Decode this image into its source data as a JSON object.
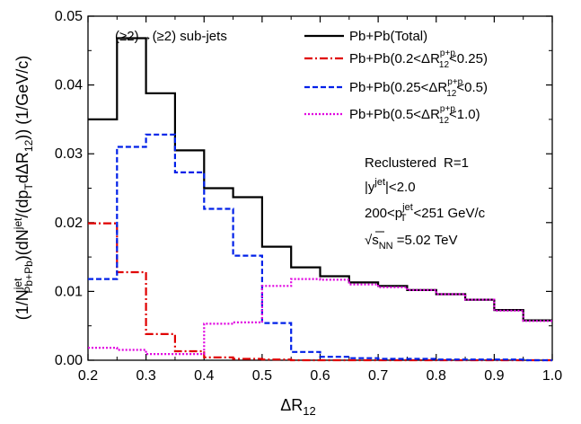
{
  "chart_data": {
    "type": "step",
    "xlabel": "ΔR12",
    "ylabel": "(1/Njet Pb+Pb)(dNjet/(dpT dΔR12)) (1/GeV/c)",
    "xlim": [
      0.2,
      1.0
    ],
    "ylim": [
      0.0,
      0.05
    ],
    "xticks": [
      "0.2",
      "0.3",
      "0.4",
      "0.5",
      "0.6",
      "0.7",
      "0.8",
      "0.9",
      "1.0"
    ],
    "yticks": [
      "0.00",
      "0.01",
      "0.02",
      "0.03",
      "0.04",
      "0.05"
    ],
    "legend_title": "(≥2)→(≥2) sub-jets",
    "bin_edges": [
      0.2,
      0.25,
      0.3,
      0.35,
      0.4,
      0.45,
      0.5,
      0.55,
      0.6,
      0.65,
      0.7,
      0.75,
      0.8,
      0.85,
      0.9,
      0.95,
      1.0
    ],
    "series": [
      {
        "name": "Pb+Pb(Total)",
        "color": "#000000",
        "style": "solid",
        "values": [
          0.035,
          0.0468,
          0.0388,
          0.0305,
          0.025,
          0.0237,
          0.0165,
          0.0135,
          0.0122,
          0.0113,
          0.0108,
          0.0102,
          0.0096,
          0.0088,
          0.0073,
          0.0058
        ]
      },
      {
        "name": "Pb+Pb(0.2<ΔR p+p 12<0.25)",
        "color": "#e00000",
        "style": "dashdot",
        "values": [
          0.0199,
          0.0128,
          0.0038,
          0.0013,
          0.0004,
          0.0002,
          0.0001,
          0.0,
          0.0,
          0.0,
          0.0,
          0.0,
          0.0,
          0.0,
          0.0,
          0.0
        ]
      },
      {
        "name": "Pb+Pb(0.25<ΔR p+p 12<0.5)",
        "color": "#0020e8",
        "style": "dashed",
        "values": [
          0.0118,
          0.031,
          0.0328,
          0.0273,
          0.022,
          0.0152,
          0.0054,
          0.0012,
          0.0005,
          0.0003,
          0.0002,
          0.0002,
          0.0001,
          0.0001,
          0.0001,
          0.0
        ]
      },
      {
        "name": "Pb+Pb(0.5<ΔR p+p 12<1.0)",
        "color": "#e000e0",
        "style": "dotted",
        "values": [
          0.0018,
          0.0015,
          0.0009,
          0.0009,
          0.0053,
          0.0055,
          0.0108,
          0.0118,
          0.0117,
          0.011,
          0.0106,
          0.0102,
          0.0096,
          0.0088,
          0.0072,
          0.0057
        ]
      }
    ],
    "legend_location": "top-right",
    "annotations": {
      "reclustered": "Reclustered",
      "radius": "R=1",
      "rapidity": "|y",
      "rapidity_sup": "jet",
      "rapidity_rest": "|<2.0",
      "pt_low": "200<p",
      "pt_sup": "jet",
      "pt_sub": "T",
      "pt_rest": "<251 GeV/c",
      "energy_s": "s",
      "energy_sub": "NN",
      "energy_rest": " =5.02 TeV"
    }
  }
}
